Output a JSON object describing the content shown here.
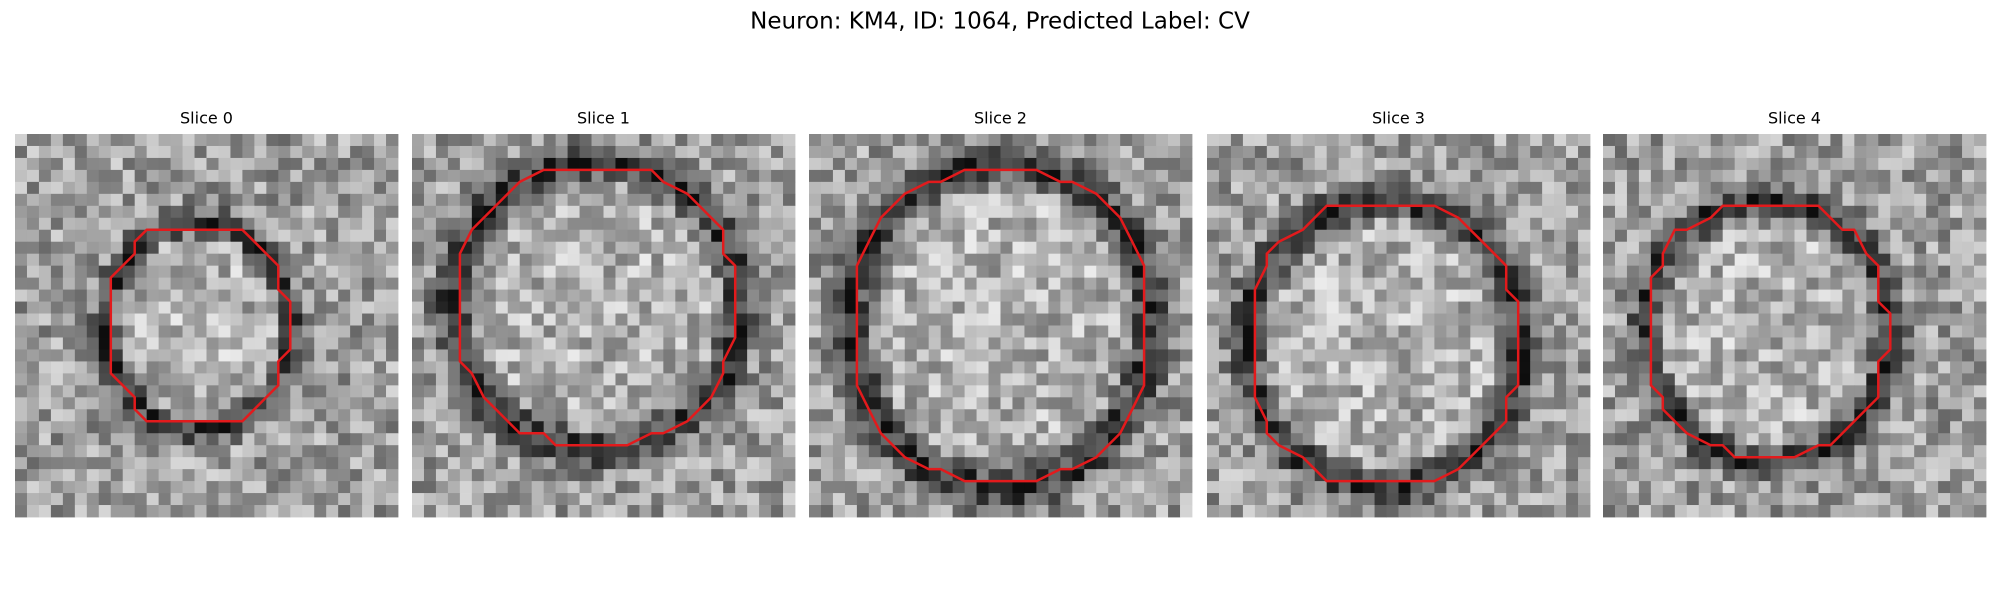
{
  "title": "Neuron: KM4, ID: 1064, Predicted Label: CV",
  "panels": [
    {
      "label": "Slice 0"
    },
    {
      "label": "Slice 1"
    },
    {
      "label": "Slice 2"
    },
    {
      "label": "Slice 3"
    },
    {
      "label": "Slice 4"
    }
  ]
}
